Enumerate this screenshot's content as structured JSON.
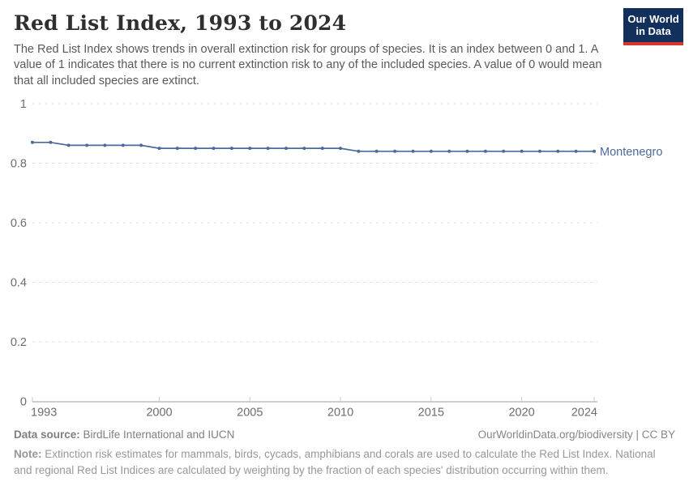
{
  "header": {
    "title": "Red List Index, 1993 to 2024",
    "subtitle": "The Red List Index shows trends in overall extinction risk for groups of species. It is an index between 0 and 1. A value of 1 indicates that there is no current extinction risk to any of the included species. A value of 0 would mean that all included species are extinct."
  },
  "logo": {
    "line1": "Our World",
    "line2": "in Data",
    "bg_color": "#12305b",
    "accent_color": "#d8352f"
  },
  "chart_data": {
    "type": "line",
    "title": "Red List Index, 1993 to 2024",
    "xlabel": "",
    "ylabel": "",
    "ylim": [
      0,
      1
    ],
    "yticks": [
      0,
      0.2,
      0.4,
      0.6,
      0.8,
      1
    ],
    "ytick_labels": [
      "0",
      "0.2",
      "0.4",
      "0.6",
      "0.8",
      "1"
    ],
    "xticks": [
      1993,
      2000,
      2005,
      2010,
      2015,
      2020,
      2024
    ],
    "grid": "horizontal-dashed",
    "legend": "end-of-line-label",
    "series": [
      {
        "name": "Montenegro",
        "color": "#4C6A9C",
        "x": [
          1993,
          1994,
          1995,
          1996,
          1997,
          1998,
          1999,
          2000,
          2001,
          2002,
          2003,
          2004,
          2005,
          2006,
          2007,
          2008,
          2009,
          2010,
          2011,
          2012,
          2013,
          2014,
          2015,
          2016,
          2017,
          2018,
          2019,
          2020,
          2021,
          2022,
          2023,
          2024
        ],
        "values": [
          0.87,
          0.87,
          0.86,
          0.86,
          0.86,
          0.86,
          0.86,
          0.85,
          0.85,
          0.85,
          0.85,
          0.85,
          0.85,
          0.85,
          0.85,
          0.85,
          0.85,
          0.85,
          0.84,
          0.84,
          0.84,
          0.84,
          0.84,
          0.84,
          0.84,
          0.84,
          0.84,
          0.84,
          0.84,
          0.84,
          0.84,
          0.84
        ]
      }
    ],
    "style": {
      "grid_color": "#dcdcdc",
      "axis_color": "#9e9e9e",
      "tick_color": "#c9c9c9",
      "tick_label_color": "#6d6d6d"
    }
  },
  "footer": {
    "datasource_label": "Data source:",
    "datasource_text": " BirdLife International and IUCN",
    "rights": "OurWorldinData.org/biodiversity | CC BY",
    "note_label": "Note:",
    "note_text": " Extinction risk estimates for mammals, birds, cycads, amphibians and corals are used to calculate the Red List Index. National and regional Red List Indices are calculated by weighting by the fraction of each species' distribution occurring within them."
  }
}
